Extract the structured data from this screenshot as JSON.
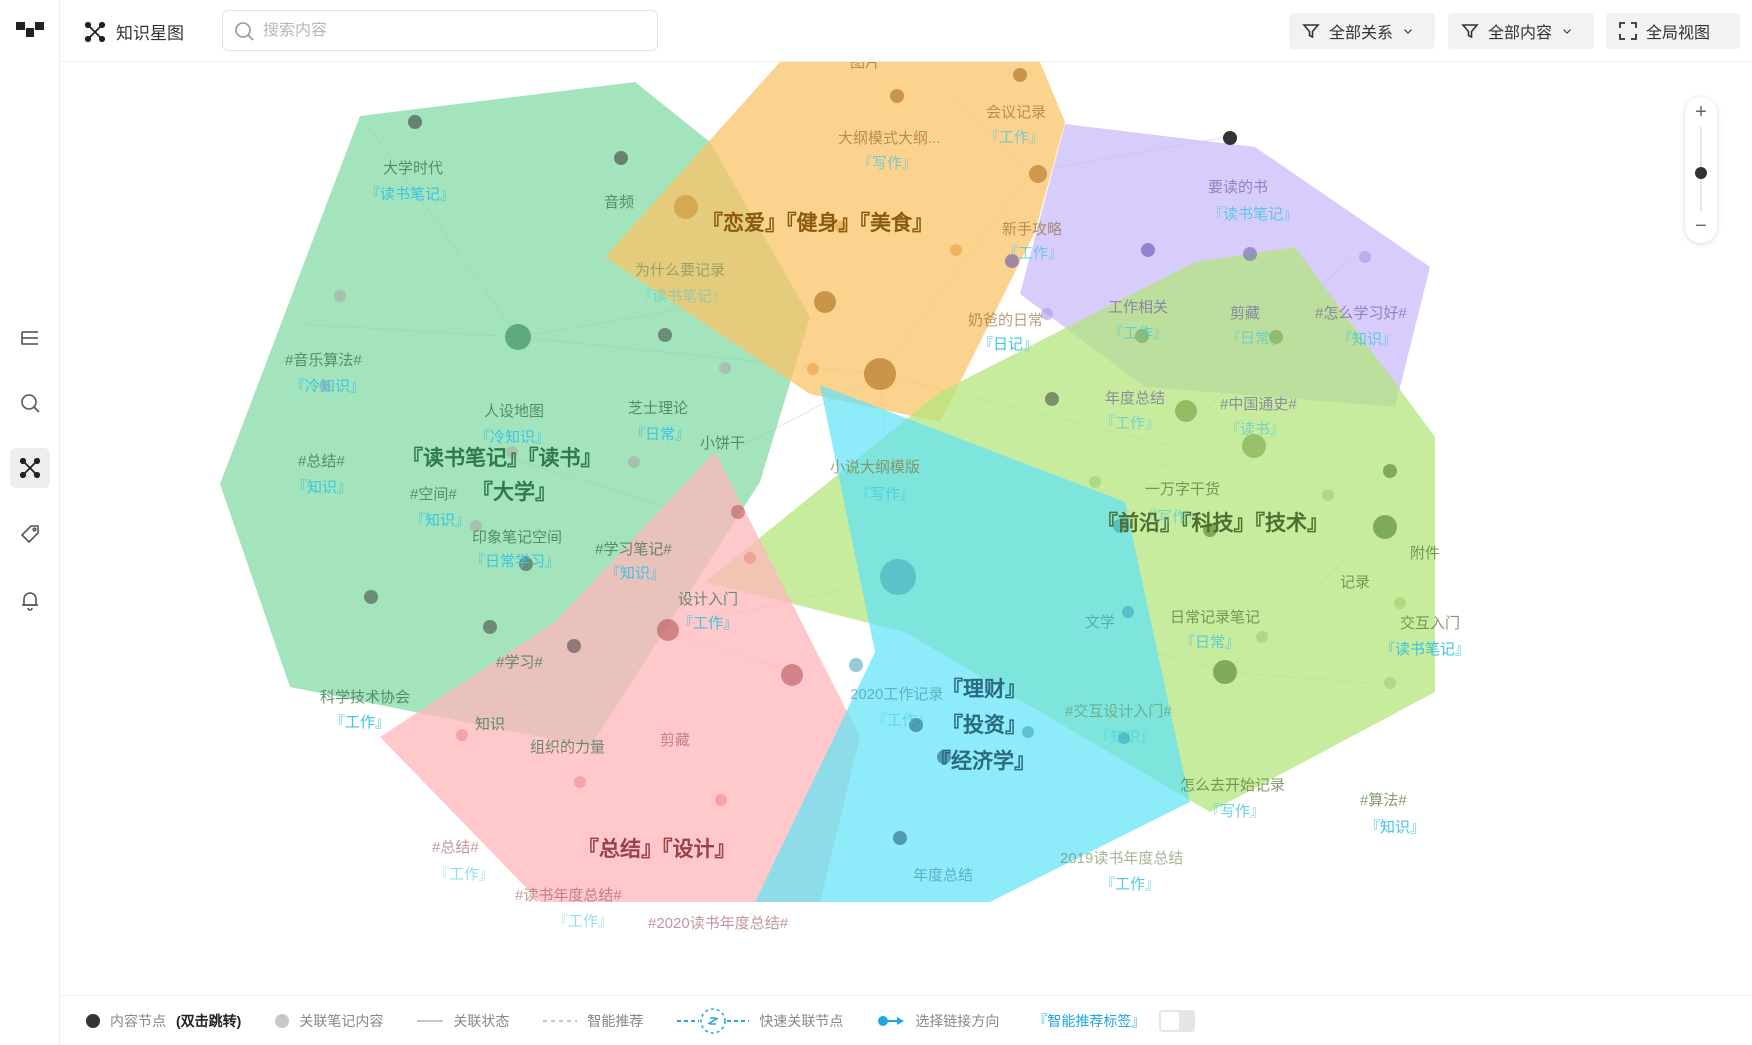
{
  "header": {
    "title": "知识星图",
    "search_placeholder": "搜索内容",
    "filter_relations": "全部关系",
    "filter_content": "全部内容",
    "global_view": "全局视图"
  },
  "graph": {
    "green": {
      "big": [
        "『读书笔记』『读书』",
        "『大学』"
      ],
      "labels": [
        "大学时代",
        "音频",
        "人设地图",
        "芝士理论",
        "小饼干",
        "#音乐算法#",
        "#总结#",
        "#空间#",
        "印象笔记空间",
        "#学习笔记#",
        "#学习#",
        "科学技术协会",
        "知识",
        "组织的力量",
        "为什么要记录",
        "设计入门"
      ],
      "tags": [
        "『读书笔记』",
        "『冷知识』",
        "『冷知识』",
        "『日常』",
        "『知识』",
        "『知识』",
        "『日常学习』",
        "『知识』",
        "『工作』",
        "『读书笔记』",
        "『工作』"
      ]
    },
    "orange": {
      "big": "『恋爱』『健身』『美食』",
      "labels": [
        "图片",
        "会议记录",
        "大纲模式大纲...",
        "新手攻略",
        "奶爸的日常",
        "小说大纲模版"
      ],
      "tags": [
        "『工作』",
        "『写作』",
        "『工作』",
        "『日记』",
        "『写作』"
      ]
    },
    "purple": {
      "labels": [
        "要读的书",
        "工作相关",
        "剪藏",
        "#怎么学习好#",
        "年度总结",
        "#中国通史#"
      ],
      "tags": [
        "『读书笔记』",
        "『工作』",
        "『日常』",
        "『知识』",
        "『工作』",
        "『读书』"
      ]
    },
    "lime": {
      "big": "『前沿』『科技』『技术』",
      "labels": [
        "一万字干货",
        "附件",
        "记录",
        "日常记录笔记",
        "交互入门",
        "#交互设计入门#",
        "怎么去开始记录",
        "#算法#",
        "2019读书年度总结"
      ],
      "tags": [
        "『写作』",
        "『日常』",
        "『读书笔记』",
        "『知识』",
        "『写作』",
        "『知识』",
        "『工作』"
      ]
    },
    "cyan": {
      "big": [
        "『理财』",
        "『投资』",
        "『经济学』"
      ],
      "labels": [
        "文学",
        "2020工作记录",
        "年度总结"
      ],
      "tags": [
        "『工作』"
      ]
    },
    "pink": {
      "big": "『总结』『设计』",
      "labels": [
        "剪藏",
        "#总结#",
        "#读书年度总结#",
        "#2020读书年度总结#"
      ],
      "tags": [
        "『工作』",
        "『工作』"
      ]
    }
  },
  "zoom": {
    "plus": "+",
    "minus": "−",
    "level": 0.5
  },
  "legend": {
    "content_node": "内容节点",
    "content_node_hint": "(双击跳转)",
    "related_note": "关联笔记内容",
    "relation_state": "关联状态",
    "smart_recommend": "智能推荐",
    "quick_link": "快速关联节点",
    "link_direction": "选择链接方向",
    "smart_tags": "『智能推荐标签』"
  },
  "colors": {
    "green": "#7ed9a0",
    "orange": "#fbc468",
    "purple": "#c8b6fb",
    "lime": "#b4e67e",
    "cyan": "#5ee3f6",
    "pink": "#ffb7bb",
    "tag": "#3cc4e2",
    "node_dark": "#333333"
  },
  "icons": {
    "logo": "app-logo-icon",
    "outline": "outline-icon",
    "search": "search-icon",
    "graph": "graph-icon",
    "tag": "tag-icon",
    "bell": "bell-icon",
    "filter": "filter-icon",
    "chevron": "chevron-down-icon",
    "fullscreen": "fullscreen-icon"
  }
}
